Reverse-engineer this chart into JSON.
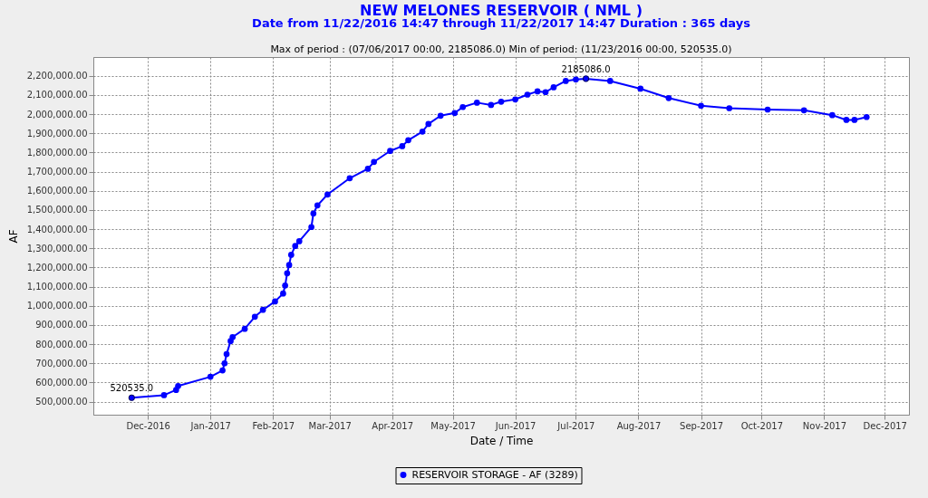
{
  "chart_data": {
    "type": "line",
    "title": "NEW MELONES RESERVOIR ( NML )",
    "subtitle": "Date from 11/22/2016 14:47 through 11/22/2017 14:47 Duration : 365 days",
    "xlabel": "Date / Time",
    "ylabel": "AF",
    "x": [
      "2016-11-23",
      "2016-12-09",
      "2016-12-15",
      "2016-12-16",
      "2017-01-01",
      "2017-01-07",
      "2017-01-08",
      "2017-01-09",
      "2017-01-11",
      "2017-01-12",
      "2017-01-18",
      "2017-01-23",
      "2017-01-27",
      "2017-02-02",
      "2017-02-06",
      "2017-02-07",
      "2017-02-08",
      "2017-02-09",
      "2017-02-10",
      "2017-02-12",
      "2017-02-14",
      "2017-02-20",
      "2017-02-21",
      "2017-02-23",
      "2017-02-28",
      "2017-03-11",
      "2017-03-20",
      "2017-03-23",
      "2017-03-31",
      "2017-04-06",
      "2017-04-09",
      "2017-04-16",
      "2017-04-19",
      "2017-04-25",
      "2017-05-02",
      "2017-05-06",
      "2017-05-13",
      "2017-05-20",
      "2017-05-25",
      "2017-06-01",
      "2017-06-07",
      "2017-06-12",
      "2017-06-16",
      "2017-06-20",
      "2017-06-26",
      "2017-07-01",
      "2017-07-06",
      "2017-07-18",
      "2017-08-02",
      "2017-08-16",
      "2017-09-01",
      "2017-09-15",
      "2017-10-04",
      "2017-10-22",
      "2017-11-05",
      "2017-11-12",
      "2017-11-16",
      "2017-11-22"
    ],
    "series": [
      {
        "name": "RESERVOIR STORAGE - AF (3289)",
        "color": "#0000ff",
        "values": [
          520535,
          534000,
          561000,
          582000,
          630000,
          663000,
          700000,
          748000,
          816000,
          837000,
          880000,
          943000,
          979000,
          1023000,
          1064000,
          1106000,
          1170000,
          1213000,
          1266000,
          1312000,
          1337000,
          1411000,
          1482000,
          1524000,
          1581000,
          1666000,
          1715000,
          1751000,
          1808000,
          1833000,
          1864000,
          1909000,
          1949000,
          1992000,
          2006000,
          2037000,
          2060000,
          2048000,
          2065000,
          2077000,
          2102000,
          2119000,
          2115000,
          2140000,
          2173000,
          2181000,
          2185086,
          2173000,
          2133000,
          2084000,
          2044000,
          2031000,
          2024000,
          2020000,
          1995000,
          1970000,
          1970000,
          1985000
        ]
      }
    ],
    "xlim": [
      "2016-11-04",
      "2017-12-13"
    ],
    "xticks": [
      {
        "value": "2016-12-01",
        "label": "Dec-2016"
      },
      {
        "value": "2017-01-01",
        "label": "Jan-2017"
      },
      {
        "value": "2017-02-01",
        "label": "Feb-2017"
      },
      {
        "value": "2017-03-01",
        "label": "Mar-2017"
      },
      {
        "value": "2017-04-01",
        "label": "Apr-2017"
      },
      {
        "value": "2017-05-01",
        "label": "May-2017"
      },
      {
        "value": "2017-06-01",
        "label": "Jun-2017"
      },
      {
        "value": "2017-07-01",
        "label": "Jul-2017"
      },
      {
        "value": "2017-08-01",
        "label": "Aug-2017"
      },
      {
        "value": "2017-09-01",
        "label": "Sep-2017"
      },
      {
        "value": "2017-10-01",
        "label": "Oct-2017"
      },
      {
        "value": "2017-11-01",
        "label": "Nov-2017"
      },
      {
        "value": "2017-12-01",
        "label": "Dec-2017"
      }
    ],
    "ylim": [
      432000,
      2298000
    ],
    "yticks": [
      {
        "value": 500000,
        "label": "500,000.00"
      },
      {
        "value": 600000,
        "label": "600,000.00"
      },
      {
        "value": 700000,
        "label": "700,000.00"
      },
      {
        "value": 800000,
        "label": "800,000.00"
      },
      {
        "value": 900000,
        "label": "900,000.00"
      },
      {
        "value": 1000000,
        "label": "1,000,000.00"
      },
      {
        "value": 1100000,
        "label": "1,100,000.00"
      },
      {
        "value": 1200000,
        "label": "1,200,000.00"
      },
      {
        "value": 1300000,
        "label": "1,300,000.00"
      },
      {
        "value": 1400000,
        "label": "1,400,000.00"
      },
      {
        "value": 1500000,
        "label": "1,500,000.00"
      },
      {
        "value": 1600000,
        "label": "1,600,000.00"
      },
      {
        "value": 1700000,
        "label": "1,700,000.00"
      },
      {
        "value": 1800000,
        "label": "1,800,000.00"
      },
      {
        "value": 1900000,
        "label": "1,900,000.00"
      },
      {
        "value": 2000000,
        "label": "2,000,000.00"
      },
      {
        "value": 2100000,
        "label": "2,100,000.00"
      },
      {
        "value": 2200000,
        "label": "2,200,000.00"
      }
    ],
    "annotations": [
      "Max of period : (07/06/2017 00:00, 2185086.0)  Min of period: (11/23/2016 00:00,  520535.0)",
      {
        "text": "2185086.0",
        "x": "2017-07-06",
        "y": 2185086
      },
      {
        "text": "520535.0",
        "x": "2016-11-23",
        "y": 520535
      }
    ],
    "grid": true,
    "legend": "bottom",
    "marker": "circle",
    "line_style": "solid"
  }
}
